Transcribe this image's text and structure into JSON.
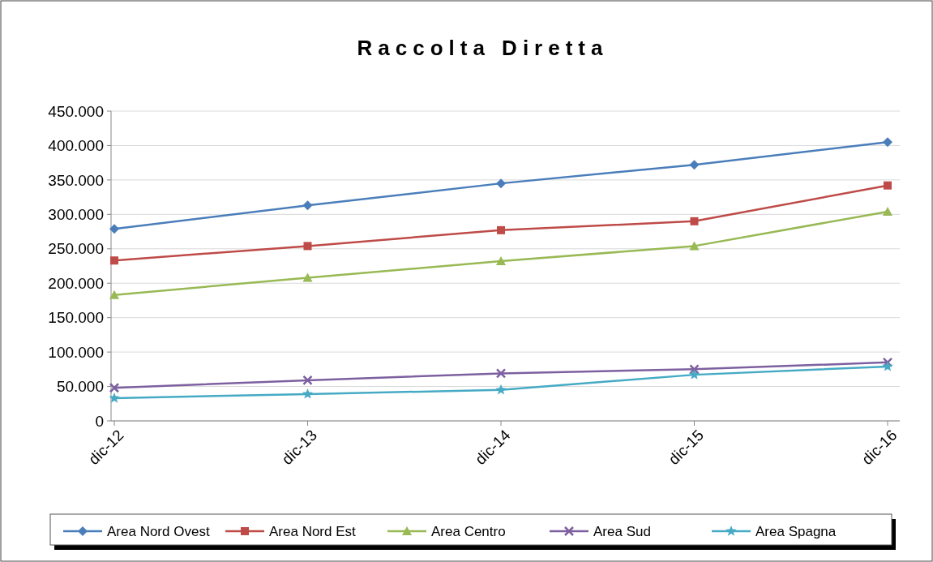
{
  "chart_data": {
    "type": "line",
    "title": "Raccolta Diretta",
    "categories": [
      "dic-12",
      "dic-13",
      "dic-14",
      "dic-15",
      "dic-16"
    ],
    "series": [
      {
        "name": "Area Nord Ovest",
        "color": "#4a7ebb",
        "marker": "diamond",
        "values": [
          279000,
          313000,
          345000,
          372000,
          405000
        ]
      },
      {
        "name": "Area Nord Est",
        "color": "#be4b48",
        "marker": "square",
        "values": [
          233000,
          254000,
          277000,
          290000,
          342000
        ]
      },
      {
        "name": "Area Centro",
        "color": "#98b954",
        "marker": "triangle",
        "values": [
          183000,
          208000,
          232000,
          254000,
          304000
        ]
      },
      {
        "name": "Area Sud",
        "color": "#7d60a0",
        "marker": "cross",
        "values": [
          48000,
          59000,
          69000,
          75000,
          85000
        ]
      },
      {
        "name": "Area Spagna",
        "color": "#46aac5",
        "marker": "star",
        "values": [
          33000,
          39000,
          45000,
          67000,
          79000
        ]
      }
    ],
    "ylim": [
      0,
      450000
    ],
    "yticks": [
      {
        "value": 0,
        "label": "0"
      },
      {
        "value": 50000,
        "label": "50.000"
      },
      {
        "value": 100000,
        "label": "100.000"
      },
      {
        "value": 150000,
        "label": "150.000"
      },
      {
        "value": 200000,
        "label": "200.000"
      },
      {
        "value": 250000,
        "label": "250.000"
      },
      {
        "value": 300000,
        "label": "300.000"
      },
      {
        "value": 350000,
        "label": "350.000"
      },
      {
        "value": 400000,
        "label": "400.000"
      },
      {
        "value": 450000,
        "label": "450.000"
      }
    ],
    "grid": "y",
    "legend": "bottom",
    "line_style": "solid"
  }
}
